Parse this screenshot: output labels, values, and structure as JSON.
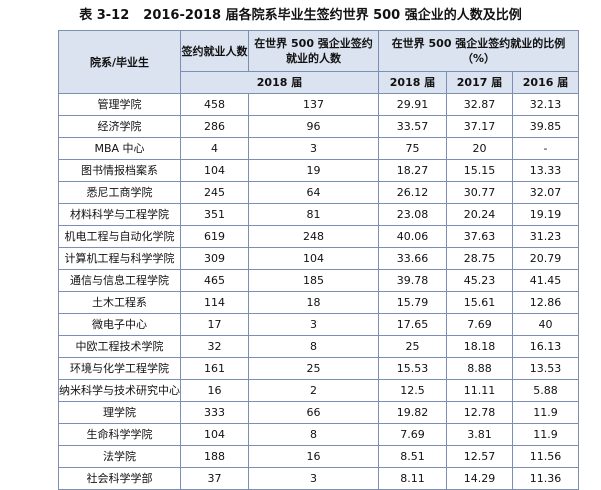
{
  "caption": {
    "number": "表 3-12",
    "title": "2016-2018 届各院系毕业生签约世界 500 强企业的人数及比例"
  },
  "headers": {
    "dept": "院系/毕业生",
    "signed": "签约就业人数",
    "fortune500_count": "在世界 500 强企业签约就业的人数",
    "ratio": "在世界 500 强企业签约就业的比例（%）",
    "year_2018_merged": "2018 届",
    "year_2018": "2018 届",
    "year_2017": "2017 届",
    "year_2016": "2016 届"
  },
  "rows": [
    {
      "dept": "管理学院",
      "signed": "458",
      "count": "137",
      "r2018": "29.91",
      "r2017": "32.87",
      "r2016": "32.13"
    },
    {
      "dept": "经济学院",
      "signed": "286",
      "count": "96",
      "r2018": "33.57",
      "r2017": "37.17",
      "r2016": "39.85"
    },
    {
      "dept": "MBA 中心",
      "signed": "4",
      "count": "3",
      "r2018": "75",
      "r2017": "20",
      "r2016": "-"
    },
    {
      "dept": "图书情报档案系",
      "signed": "104",
      "count": "19",
      "r2018": "18.27",
      "r2017": "15.15",
      "r2016": "13.33"
    },
    {
      "dept": "悉尼工商学院",
      "signed": "245",
      "count": "64",
      "r2018": "26.12",
      "r2017": "30.77",
      "r2016": "32.07"
    },
    {
      "dept": "材料科学与工程学院",
      "signed": "351",
      "count": "81",
      "r2018": "23.08",
      "r2017": "20.24",
      "r2016": "19.19"
    },
    {
      "dept": "机电工程与自动化学院",
      "signed": "619",
      "count": "248",
      "r2018": "40.06",
      "r2017": "37.63",
      "r2016": "31.23"
    },
    {
      "dept": "计算机工程与科学学院",
      "signed": "309",
      "count": "104",
      "r2018": "33.66",
      "r2017": "28.75",
      "r2016": "20.79"
    },
    {
      "dept": "通信与信息工程学院",
      "signed": "465",
      "count": "185",
      "r2018": "39.78",
      "r2017": "45.23",
      "r2016": "41.45"
    },
    {
      "dept": "土木工程系",
      "signed": "114",
      "count": "18",
      "r2018": "15.79",
      "r2017": "15.61",
      "r2016": "12.86"
    },
    {
      "dept": "微电子中心",
      "signed": "17",
      "count": "3",
      "r2018": "17.65",
      "r2017": "7.69",
      "r2016": "40"
    },
    {
      "dept": "中欧工程技术学院",
      "signed": "32",
      "count": "8",
      "r2018": "25",
      "r2017": "18.18",
      "r2016": "16.13"
    },
    {
      "dept": "环境与化学工程学院",
      "signed": "161",
      "count": "25",
      "r2018": "15.53",
      "r2017": "8.88",
      "r2016": "13.53"
    },
    {
      "dept": "纳米科学与技术研究中心",
      "signed": "16",
      "count": "2",
      "r2018": "12.5",
      "r2017": "11.11",
      "r2016": "5.88"
    },
    {
      "dept": "理学院",
      "signed": "333",
      "count": "66",
      "r2018": "19.82",
      "r2017": "12.78",
      "r2016": "11.9"
    },
    {
      "dept": "生命科学学院",
      "signed": "104",
      "count": "8",
      "r2018": "7.69",
      "r2017": "3.81",
      "r2016": "11.9"
    },
    {
      "dept": "法学院",
      "signed": "188",
      "count": "16",
      "r2018": "8.51",
      "r2017": "12.57",
      "r2016": "11.56"
    },
    {
      "dept": "社会科学学部",
      "signed": "37",
      "count": "3",
      "r2018": "8.11",
      "r2017": "14.29",
      "r2016": "11.36"
    }
  ]
}
